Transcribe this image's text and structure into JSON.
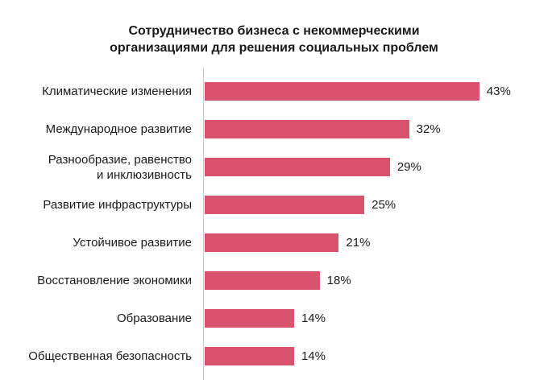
{
  "title": "Сотрудничество бизнеса с некоммерческими организациями для решения социальных проблем",
  "chart_data": {
    "type": "bar",
    "orientation": "horizontal",
    "title": "Сотрудничество бизнеса с некоммерческими организациями для решения социальных проблем",
    "categories": [
      "Климатические изменения",
      "Международное развитие",
      "Разнообразие, равенство\nи инклюзивность",
      "Развитие инфраструктуры",
      "Устойчивое развитие",
      "Восстановление экономики",
      "Образование",
      "Общественная безопасность"
    ],
    "values": [
      43,
      32,
      29,
      25,
      21,
      18,
      14,
      14
    ],
    "value_labels": [
      "43%",
      "32%",
      "29%",
      "25%",
      "21%",
      "18%",
      "14%",
      "14%"
    ],
    "value_suffix": "%",
    "bar_color": "#d9536e",
    "axis_color": "#c9c9c9",
    "xlim": [
      0,
      45
    ],
    "grid": false,
    "legend": false,
    "xlabel": "",
    "ylabel": ""
  }
}
